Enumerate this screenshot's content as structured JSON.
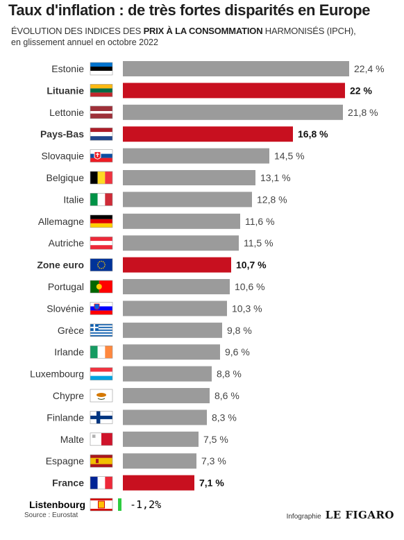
{
  "title": "Taux d'inflation : de très fortes disparités en Europe",
  "subtitle_pre": "ÉVOLUTION DES INDICES DES ",
  "subtitle_bold": "PRIX À LA CONSOMMATION",
  "subtitle_post": " HARMONISÉS (IPCH),",
  "subtitle_line2": "en glissement annuel en octobre 2022",
  "source": "Source : Eurostat",
  "credit_prefix": "Infographie",
  "credit_brand": "LE FIGARO",
  "colors": {
    "grey_bar": "#9b9b9b",
    "highlight_bar": "#c8101f",
    "extra_bar": "#2ecc40"
  },
  "chart_data": {
    "type": "bar",
    "orientation": "horizontal",
    "categories": [
      "Estonie",
      "Lituanie",
      "Lettonie",
      "Pays-Bas",
      "Slovaquie",
      "Belgique",
      "Italie",
      "Allemagne",
      "Autriche",
      "Zone euro",
      "Portugal",
      "Slovénie",
      "Grèce",
      "Irlande",
      "Luxembourg",
      "Chypre",
      "Finlande",
      "Malte",
      "Espagne",
      "France",
      "Listenbourg"
    ],
    "values": [
      22.4,
      22,
      21.8,
      16.8,
      14.5,
      13.1,
      12.8,
      11.6,
      11.5,
      10.7,
      10.6,
      10.3,
      9.8,
      9.6,
      8.8,
      8.6,
      8.3,
      7.5,
      7.3,
      7.1,
      -1.2
    ],
    "value_labels": [
      "22,4 %",
      "22 %",
      "21,8 %",
      "16,8 %",
      "14,5 %",
      "13,1 %",
      "12,8 %",
      "11,6 %",
      "11,5 %",
      "10,7 %",
      "10,6 %",
      "10,3 %",
      "9,8 %",
      "9,6 %",
      "8,8 %",
      "8,6 %",
      "8,3 %",
      "7,5 %",
      "7,3 %",
      "7,1 %",
      "-1,2%"
    ],
    "highlighted": [
      "Lituanie",
      "Pays-Bas",
      "Zone euro",
      "France"
    ],
    "flags": [
      "estonia-flag",
      "lithuania-flag",
      "latvia-flag",
      "netherlands-flag",
      "slovakia-flag",
      "belgium-flag",
      "italy-flag",
      "germany-flag",
      "austria-flag",
      "euro-flag",
      "portugal-flag",
      "slovenia-flag",
      "greece-flag",
      "ireland-flag",
      "luxembourg-flag",
      "cyprus-flag",
      "finland-flag",
      "malta-flag",
      "spain-flag",
      "france-flag",
      "listenbourg-flag"
    ],
    "xlim": [
      0,
      22.4
    ],
    "grid": false,
    "legend": "none"
  }
}
